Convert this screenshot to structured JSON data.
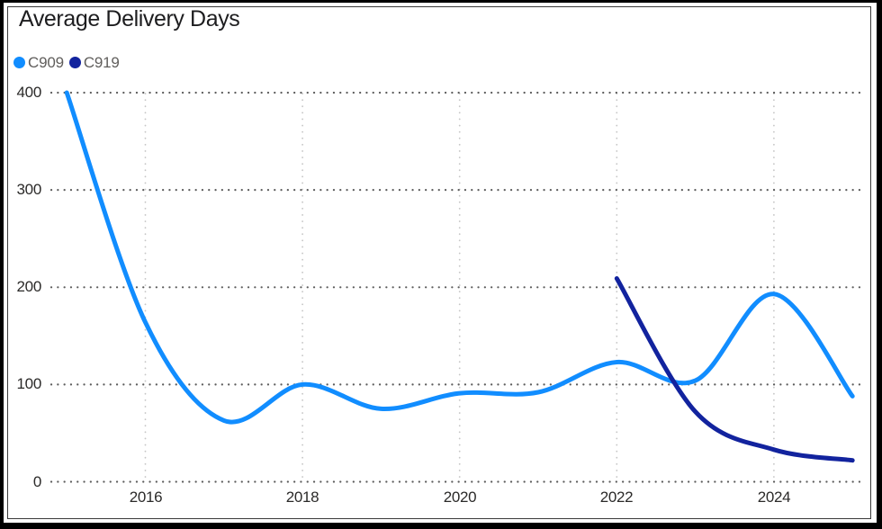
{
  "window": {
    "title": "Average Delivery Days"
  },
  "chart_data": {
    "type": "line",
    "title": "Average Delivery Days",
    "smooth": true,
    "grid": "dotted",
    "legend_position": "top-left",
    "xlabel": "",
    "ylabel": "",
    "xlim": [
      2015,
      2025
    ],
    "ylim": [
      0,
      400
    ],
    "x_ticks": [
      2016,
      2018,
      2020,
      2022,
      2024
    ],
    "y_ticks": [
      0,
      100,
      200,
      300,
      400
    ],
    "series": [
      {
        "name": "C909",
        "color": "#118DFF",
        "points": [
          [
            2015,
            400
          ],
          [
            2016,
            164
          ],
          [
            2017,
            63
          ],
          [
            2018,
            100
          ],
          [
            2019,
            75
          ],
          [
            2020,
            91
          ],
          [
            2021,
            92
          ],
          [
            2022,
            123
          ],
          [
            2023,
            104
          ],
          [
            2024,
            193
          ],
          [
            2025,
            88
          ]
        ]
      },
      {
        "name": "C919",
        "color": "#12239E",
        "points": [
          [
            2022,
            209
          ],
          [
            2023,
            72
          ],
          [
            2024,
            33
          ],
          [
            2025,
            22
          ]
        ]
      }
    ]
  },
  "colors": {
    "series_c909": "#118DFF",
    "series_c919": "#12239E",
    "h_gridline": "#5c5c5c",
    "v_gridline": "#c6c6c6",
    "axis_label": "#2b2a29",
    "legend_text": "#605e5c",
    "title_text": "#1d1d1f",
    "frame": "#000000"
  }
}
